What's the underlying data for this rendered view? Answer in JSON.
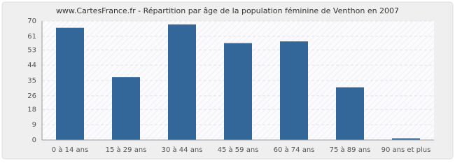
{
  "chart_data": {
    "type": "bar",
    "title": "www.CartesFrance.fr - Répartition par âge de la population féminine de Venthon en 2007",
    "categories": [
      "0 à 14 ans",
      "15 à 29 ans",
      "30 à 44 ans",
      "45 à 59 ans",
      "60 à 74 ans",
      "75 à 89 ans",
      "90 ans et plus"
    ],
    "values": [
      66,
      37,
      68,
      57,
      58,
      31,
      1
    ],
    "color": "#336699",
    "ylim": [
      0,
      70
    ],
    "yticks": [
      0,
      9,
      18,
      26,
      35,
      44,
      53,
      61,
      70
    ],
    "grid": true
  }
}
